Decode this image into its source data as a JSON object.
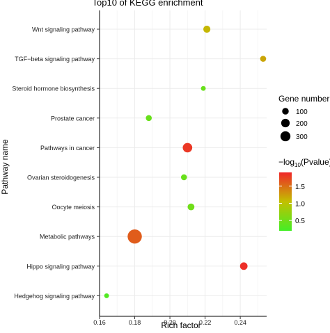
{
  "chart_data": {
    "type": "scatter",
    "title": "Top10 of KEGG enrichment",
    "xlabel": "Rich factor",
    "ylabel": "Pathway name",
    "xlim": [
      0.16,
      0.255
    ],
    "xticks": [
      0.16,
      0.18,
      0.2,
      0.22,
      0.24
    ],
    "xtick_labels": [
      "0.16",
      "0.18",
      "0.20",
      "0.22",
      "0.24"
    ],
    "grid": true,
    "categories": [
      "Wnt signaling pathway",
      "TGF−beta signaling pathway",
      "Steroid hormone biosynthesis",
      "Prostate cancer",
      "Pathways in cancer",
      "Ovarian steroidogenesis",
      "Oocyte meiosis",
      "Metabolic pathways",
      "Hippo signaling pathway",
      "Hedgehog signaling pathway"
    ],
    "points": [
      {
        "pathway": "Wnt signaling pathway",
        "rich_factor": 0.221,
        "gene_number": 45,
        "neg_log10_pvalue": 1.1
      },
      {
        "pathway": "TGF−beta signaling pathway",
        "rich_factor": 0.253,
        "gene_number": 25,
        "neg_log10_pvalue": 1.2
      },
      {
        "pathway": "Steroid hormone biosynthesis",
        "rich_factor": 0.219,
        "gene_number": 10,
        "neg_log10_pvalue": 0.45
      },
      {
        "pathway": "Prostate cancer",
        "rich_factor": 0.188,
        "gene_number": 25,
        "neg_log10_pvalue": 0.45
      },
      {
        "pathway": "Pathways in cancer",
        "rich_factor": 0.21,
        "gene_number": 110,
        "neg_log10_pvalue": 1.8
      },
      {
        "pathway": "Ovarian steroidogenesis",
        "rich_factor": 0.208,
        "gene_number": 25,
        "neg_log10_pvalue": 0.45
      },
      {
        "pathway": "Oocyte meiosis",
        "rich_factor": 0.212,
        "gene_number": 40,
        "neg_log10_pvalue": 0.5
      },
      {
        "pathway": "Metabolic pathways",
        "rich_factor": 0.18,
        "gene_number": 320,
        "neg_log10_pvalue": 1.6
      },
      {
        "pathway": "Hippo signaling pathway",
        "rich_factor": 0.242,
        "gene_number": 55,
        "neg_log10_pvalue": 1.85
      },
      {
        "pathway": "Hedgehog signaling pathway",
        "rich_factor": 0.164,
        "gene_number": 10,
        "neg_log10_pvalue": 0.3
      }
    ],
    "size_legend": {
      "title": "Gene number",
      "values": [
        100,
        200,
        300
      ],
      "labels": [
        "100",
        "200",
        "300"
      ]
    },
    "color_legend": {
      "title_main": "−log",
      "title_sub": "10",
      "title_rest": "(Pvalue)",
      "range": [
        0.2,
        1.9
      ],
      "ticks": [
        0.5,
        1.0,
        1.5
      ],
      "tick_labels": [
        "0.5",
        "1.0",
        "1.5"
      ],
      "colors": [
        "#43ee26",
        "#c2c000",
        "#f0262a"
      ]
    },
    "legend_position": "right",
    "panel_background": "#ffffff",
    "grid_color": "#ebebeb"
  }
}
